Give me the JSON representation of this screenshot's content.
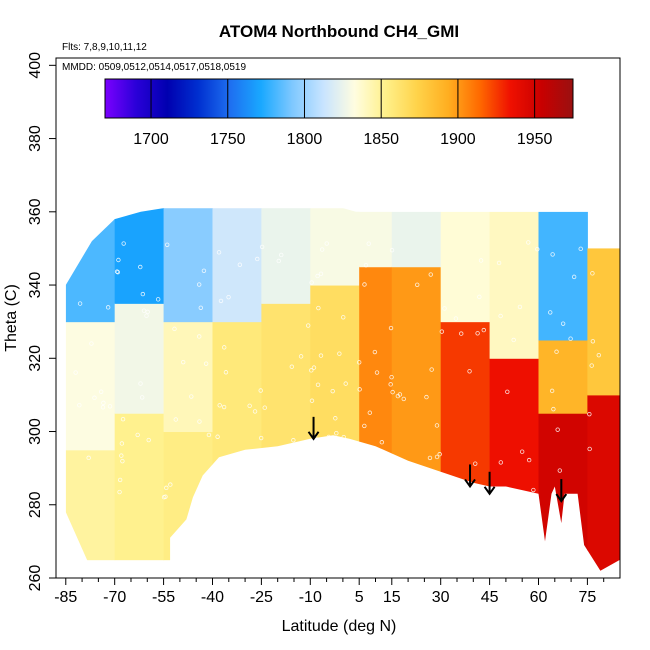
{
  "chart_data": {
    "type": "heatmap",
    "title": "ATOM4 Northbound CH4_GMI",
    "annotations": {
      "flights": "Flts: 7,8,9,10,11,12",
      "dates": "MMDD: 0509,0512,0514,0517,0518,0519"
    },
    "xlabel": "Latitude (deg N)",
    "ylabel": "Theta (C)",
    "xlim": [
      -88,
      85
    ],
    "ylim": [
      260,
      402
    ],
    "x_ticks": [
      -85,
      -70,
      -55,
      -40,
      -25,
      -10,
      5,
      15,
      30,
      45,
      60,
      75
    ],
    "x_minor_ticks": [
      -80,
      -75,
      -65,
      -60,
      -50,
      -45,
      -35,
      -30,
      -20,
      -15,
      -5,
      0,
      10,
      20,
      25,
      35,
      40,
      50,
      55,
      65,
      70,
      80
    ],
    "y_ticks": [
      260,
      280,
      300,
      320,
      340,
      360,
      380,
      400
    ],
    "colorbar": {
      "min": 1670,
      "max": 1975,
      "ticks": [
        1700,
        1750,
        1800,
        1850,
        1900,
        1950
      ],
      "colors": [
        "#7b00ff",
        "#2a00d8",
        "#0000b0",
        "#0030d0",
        "#1e6ef0",
        "#19a8ff",
        "#7ec8ff",
        "#c8e4ff",
        "#fffde0",
        "#fff08a",
        "#ffd34a",
        "#ffae20",
        "#ff6a00",
        "#ef1000",
        "#c80000",
        "#9a1010"
      ]
    },
    "data_region": {
      "top_boundary": [
        [
          -85,
          340
        ],
        [
          -77,
          352
        ],
        [
          -70,
          358
        ],
        [
          -62,
          360
        ],
        [
          -55,
          361
        ],
        [
          0,
          361
        ],
        [
          4,
          360
        ],
        [
          76,
          360
        ],
        [
          85,
          352
        ]
      ],
      "bottom_boundary": [
        [
          85,
          265
        ],
        [
          79,
          262
        ],
        [
          74,
          269
        ],
        [
          72,
          283
        ],
        [
          68,
          283
        ],
        [
          67,
          275
        ],
        [
          65,
          285
        ],
        [
          64,
          283
        ],
        [
          62,
          270
        ],
        [
          60,
          283
        ],
        [
          55,
          284
        ],
        [
          50,
          285
        ],
        [
          45,
          285
        ],
        [
          40,
          286
        ],
        [
          30,
          289
        ],
        [
          20,
          292
        ],
        [
          10,
          296
        ],
        [
          2,
          298
        ],
        [
          -3,
          299
        ],
        [
          -10,
          298
        ],
        [
          -20,
          296
        ],
        [
          -30,
          295
        ],
        [
          -38,
          293
        ],
        [
          -43,
          288
        ],
        [
          -46,
          282
        ],
        [
          -48,
          276
        ],
        [
          -53,
          271
        ],
        [
          -53,
          264
        ],
        [
          -78,
          264
        ],
        [
          -85,
          278
        ]
      ]
    },
    "field_regions": [
      {
        "lat": [
          -85,
          -70
        ],
        "theta": [
          265,
          295
        ],
        "value": 1848
      },
      {
        "lat": [
          -85,
          -70
        ],
        "theta": [
          295,
          330
        ],
        "value": 1832
      },
      {
        "lat": [
          -85,
          -70
        ],
        "theta": [
          330,
          360
        ],
        "value": 1782
      },
      {
        "lat": [
          -70,
          -55
        ],
        "theta": [
          265,
          305
        ],
        "value": 1852
      },
      {
        "lat": [
          -70,
          -55
        ],
        "theta": [
          305,
          335
        ],
        "value": 1828
      },
      {
        "lat": [
          -70,
          -55
        ],
        "theta": [
          335,
          361
        ],
        "value": 1770
      },
      {
        "lat": [
          -55,
          -40
        ],
        "theta": [
          265,
          300
        ],
        "value": 1855
      },
      {
        "lat": [
          -55,
          -40
        ],
        "theta": [
          300,
          330
        ],
        "value": 1842
      },
      {
        "lat": [
          -55,
          -40
        ],
        "theta": [
          330,
          361
        ],
        "value": 1795
      },
      {
        "lat": [
          -40,
          -25
        ],
        "theta": [
          285,
          330
        ],
        "value": 1858
      },
      {
        "lat": [
          -40,
          -25
        ],
        "theta": [
          330,
          361
        ],
        "value": 1815
      },
      {
        "lat": [
          -25,
          -10
        ],
        "theta": [
          295,
          335
        ],
        "value": 1862
      },
      {
        "lat": [
          -25,
          -10
        ],
        "theta": [
          335,
          361
        ],
        "value": 1825
      },
      {
        "lat": [
          -10,
          5
        ],
        "theta": [
          297,
          340
        ],
        "value": 1866
      },
      {
        "lat": [
          -10,
          5
        ],
        "theta": [
          340,
          361
        ],
        "value": 1830
      },
      {
        "lat": [
          5,
          15
        ],
        "theta": [
          292,
          345
        ],
        "value": 1905
      },
      {
        "lat": [
          5,
          15
        ],
        "theta": [
          345,
          360
        ],
        "value": 1830
      },
      {
        "lat": [
          15,
          30
        ],
        "theta": [
          288,
          345
        ],
        "value": 1900
      },
      {
        "lat": [
          15,
          30
        ],
        "theta": [
          345,
          360
        ],
        "value": 1825
      },
      {
        "lat": [
          30,
          45
        ],
        "theta": [
          285,
          330
        ],
        "value": 1925
      },
      {
        "lat": [
          30,
          45
        ],
        "theta": [
          330,
          360
        ],
        "value": 1835
      },
      {
        "lat": [
          45,
          60
        ],
        "theta": [
          283,
          320
        ],
        "value": 1935
      },
      {
        "lat": [
          45,
          60
        ],
        "theta": [
          320,
          360
        ],
        "value": 1840
      },
      {
        "lat": [
          60,
          75
        ],
        "theta": [
          265,
          305
        ],
        "value": 1950
      },
      {
        "lat": [
          60,
          75
        ],
        "theta": [
          305,
          325
        ],
        "value": 1890
      },
      {
        "lat": [
          60,
          75
        ],
        "theta": [
          325,
          360
        ],
        "value": 1780
      },
      {
        "lat": [
          75,
          85
        ],
        "theta": [
          262,
          310
        ],
        "value": 1945
      },
      {
        "lat": [
          75,
          85
        ],
        "theta": [
          310,
          350
        ],
        "value": 1880
      }
    ],
    "arrows": [
      {
        "lat": -9,
        "theta": 298
      },
      {
        "lat": 39,
        "theta": 285
      },
      {
        "lat": 45,
        "theta": 283
      },
      {
        "lat": 67,
        "theta": 281
      }
    ]
  }
}
